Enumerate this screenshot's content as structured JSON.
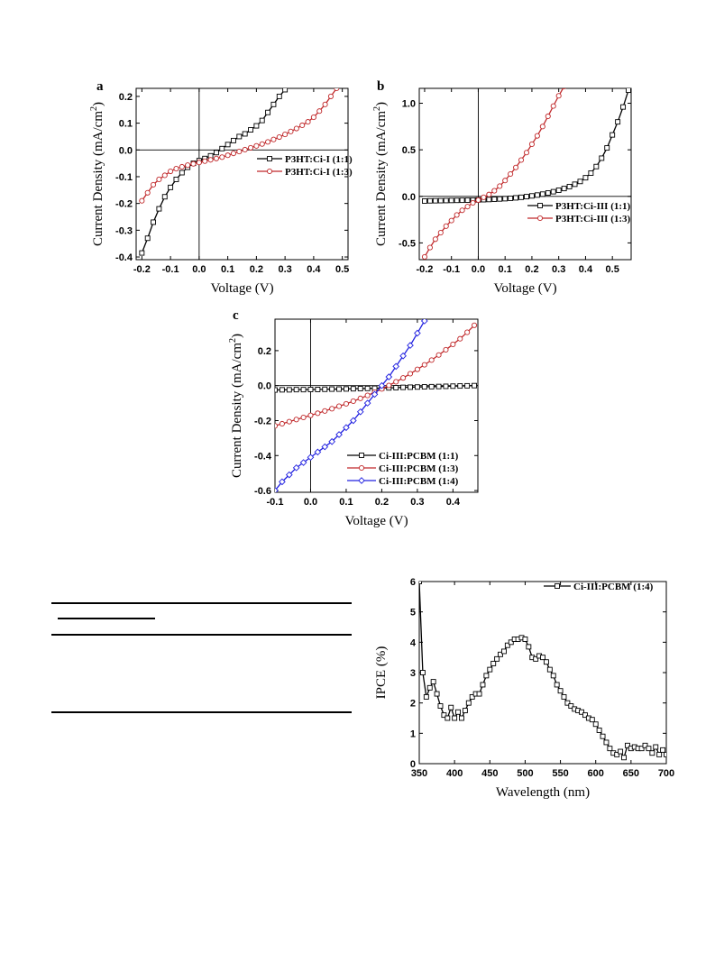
{
  "chart_data": [
    {
      "id": "a",
      "panel_label": "a",
      "type": "line",
      "xlabel": "Voltage (V)",
      "ylabel": "Current Density (mA/cm",
      "ylabel_sup": "2",
      "ylabel_end": ")",
      "xlim": [
        -0.22,
        0.52
      ],
      "ylim": [
        -0.41,
        0.23
      ],
      "xticks": [
        -0.2,
        -0.1,
        0.0,
        0.1,
        0.2,
        0.3,
        0.4,
        0.5
      ],
      "xtick_labels": [
        "-0.2",
        "-0.1",
        "0.0",
        "0.1",
        "0.2",
        "0.3",
        "0.4",
        "0.5"
      ],
      "yticks": [
        -0.4,
        -0.3,
        -0.2,
        -0.1,
        0.0,
        0.1,
        0.2
      ],
      "ytick_labels": [
        "-0.4",
        "-0.3",
        "-0.2",
        "-0.1",
        "0.0",
        "0.1",
        "0.2"
      ],
      "zero_lines": true,
      "legend": "center-right",
      "series": [
        {
          "name": "P3HT:Ci-I (1:1)",
          "color": "#000000",
          "marker": "square",
          "x": [
            -0.2,
            -0.18,
            -0.16,
            -0.14,
            -0.12,
            -0.1,
            -0.08,
            -0.06,
            -0.04,
            -0.02,
            0.0,
            0.02,
            0.04,
            0.06,
            0.08,
            0.1,
            0.12,
            0.14,
            0.16,
            0.18,
            0.2,
            0.22,
            0.24,
            0.26,
            0.28,
            0.3
          ],
          "y": [
            -0.385,
            -0.33,
            -0.27,
            -0.22,
            -0.175,
            -0.14,
            -0.11,
            -0.085,
            -0.065,
            -0.05,
            -0.04,
            -0.032,
            -0.022,
            -0.01,
            0.005,
            0.02,
            0.035,
            0.05,
            0.06,
            0.075,
            0.09,
            0.11,
            0.14,
            0.17,
            0.2,
            0.225
          ]
        },
        {
          "name": "P3HT:Ci-I (1:3)",
          "color": "#c0282a",
          "marker": "circle",
          "x": [
            -0.2,
            -0.18,
            -0.16,
            -0.14,
            -0.12,
            -0.1,
            -0.08,
            -0.06,
            -0.04,
            -0.02,
            0.0,
            0.02,
            0.04,
            0.06,
            0.08,
            0.1,
            0.12,
            0.14,
            0.16,
            0.18,
            0.2,
            0.22,
            0.24,
            0.26,
            0.28,
            0.3,
            0.32,
            0.34,
            0.36,
            0.38,
            0.4,
            0.42,
            0.44,
            0.46,
            0.48
          ],
          "y": [
            -0.19,
            -0.16,
            -0.13,
            -0.11,
            -0.095,
            -0.08,
            -0.07,
            -0.063,
            -0.057,
            -0.052,
            -0.047,
            -0.042,
            -0.037,
            -0.032,
            -0.027,
            -0.02,
            -0.013,
            -0.006,
            0.001,
            0.008,
            0.015,
            0.022,
            0.03,
            0.039,
            0.048,
            0.058,
            0.069,
            0.08,
            0.092,
            0.105,
            0.122,
            0.145,
            0.17,
            0.2,
            0.23
          ]
        }
      ]
    },
    {
      "id": "b",
      "panel_label": "b",
      "type": "line",
      "xlabel": "Voltage (V)",
      "ylabel": "Current Density (mA/cm",
      "ylabel_sup": "2",
      "ylabel_end": ")",
      "xlim": [
        -0.22,
        0.57
      ],
      "ylim": [
        -0.68,
        1.16
      ],
      "xticks": [
        -0.2,
        -0.1,
        0.0,
        0.1,
        0.2,
        0.3,
        0.4,
        0.5
      ],
      "xtick_labels": [
        "-0.2",
        "-0.1",
        "0.0",
        "0.1",
        "0.2",
        "0.3",
        "0.4",
        "0.5"
      ],
      "yticks": [
        -0.5,
        0.0,
        0.5,
        1.0
      ],
      "ytick_labels": [
        "-0.5",
        "0.0",
        "0.5",
        "1.0"
      ],
      "zero_lines": true,
      "legend": "lower-right",
      "series": [
        {
          "name": "P3HT:Ci-III (1:1)",
          "color": "#000000",
          "marker": "square",
          "x": [
            -0.2,
            -0.18,
            -0.16,
            -0.14,
            -0.12,
            -0.1,
            -0.08,
            -0.06,
            -0.04,
            -0.02,
            0.0,
            0.02,
            0.04,
            0.06,
            0.08,
            0.1,
            0.12,
            0.14,
            0.16,
            0.18,
            0.2,
            0.22,
            0.24,
            0.26,
            0.28,
            0.3,
            0.32,
            0.34,
            0.36,
            0.38,
            0.4,
            0.42,
            0.44,
            0.46,
            0.48,
            0.5,
            0.52,
            0.54,
            0.56
          ],
          "y": [
            -0.05,
            -0.048,
            -0.047,
            -0.046,
            -0.045,
            -0.044,
            -0.043,
            -0.042,
            -0.041,
            -0.04,
            -0.038,
            -0.036,
            -0.034,
            -0.031,
            -0.028,
            -0.025,
            -0.021,
            -0.016,
            -0.01,
            -0.003,
            0.005,
            0.014,
            0.024,
            0.036,
            0.05,
            0.066,
            0.084,
            0.105,
            0.13,
            0.16,
            0.2,
            0.25,
            0.32,
            0.41,
            0.52,
            0.66,
            0.8,
            0.96,
            1.14
          ]
        },
        {
          "name": "P3HT:Ci-III (1:3)",
          "color": "#c0282a",
          "marker": "circle",
          "x": [
            -0.2,
            -0.18,
            -0.16,
            -0.14,
            -0.12,
            -0.1,
            -0.08,
            -0.06,
            -0.04,
            -0.02,
            0.0,
            0.02,
            0.04,
            0.06,
            0.08,
            0.1,
            0.12,
            0.14,
            0.16,
            0.18,
            0.2,
            0.22,
            0.24,
            0.26,
            0.28,
            0.3,
            0.32
          ],
          "y": [
            -0.65,
            -0.55,
            -0.46,
            -0.39,
            -0.32,
            -0.26,
            -0.2,
            -0.15,
            -0.11,
            -0.07,
            -0.04,
            -0.01,
            0.02,
            0.06,
            0.11,
            0.17,
            0.24,
            0.31,
            0.39,
            0.47,
            0.56,
            0.65,
            0.75,
            0.86,
            0.97,
            1.08,
            1.18
          ]
        }
      ]
    },
    {
      "id": "c",
      "panel_label": "c",
      "type": "line",
      "xlabel": "Voltage (V)",
      "ylabel": "Current Density (mA/cm",
      "ylabel_sup": "2",
      "ylabel_end": ")",
      "xlim": [
        -0.1,
        0.47
      ],
      "ylim": [
        -0.61,
        0.38
      ],
      "xticks": [
        -0.1,
        0.0,
        0.1,
        0.2,
        0.3,
        0.4
      ],
      "xtick_labels": [
        "-0.1",
        "0.0",
        "0.1",
        "0.2",
        "0.3",
        "0.4"
      ],
      "yticks": [
        -0.6,
        -0.4,
        -0.2,
        0.0,
        0.2
      ],
      "ytick_labels": [
        "-0.6",
        "-0.4",
        "-0.2",
        "0.0",
        "0.2"
      ],
      "zero_lines": true,
      "legend": "lower-right",
      "series": [
        {
          "name": "Ci-III:PCBM (1:1)",
          "color": "#000000",
          "marker": "square",
          "x": [
            -0.1,
            -0.08,
            -0.06,
            -0.04,
            -0.02,
            0.0,
            0.02,
            0.04,
            0.06,
            0.08,
            0.1,
            0.12,
            0.14,
            0.16,
            0.18,
            0.2,
            0.22,
            0.24,
            0.26,
            0.28,
            0.3,
            0.32,
            0.34,
            0.36,
            0.38,
            0.4,
            0.42,
            0.44,
            0.46
          ],
          "y": [
            -0.025,
            -0.024,
            -0.024,
            -0.023,
            -0.023,
            -0.022,
            -0.022,
            -0.021,
            -0.02,
            -0.02,
            -0.019,
            -0.018,
            -0.017,
            -0.016,
            -0.015,
            -0.014,
            -0.013,
            -0.012,
            -0.01,
            -0.009,
            -0.008,
            -0.007,
            -0.006,
            -0.005,
            -0.004,
            -0.003,
            -0.002,
            -0.001,
            0.0
          ]
        },
        {
          "name": "Ci-III:PCBM (1:3)",
          "color": "#c0282a",
          "marker": "circle",
          "x": [
            -0.1,
            -0.08,
            -0.06,
            -0.04,
            -0.02,
            0.0,
            0.02,
            0.04,
            0.06,
            0.08,
            0.1,
            0.12,
            0.14,
            0.16,
            0.18,
            0.2,
            0.22,
            0.24,
            0.26,
            0.28,
            0.3,
            0.32,
            0.34,
            0.36,
            0.38,
            0.4,
            0.42,
            0.44,
            0.46
          ],
          "y": [
            -0.23,
            -0.218,
            -0.206,
            -0.194,
            -0.182,
            -0.17,
            -0.158,
            -0.145,
            -0.132,
            -0.118,
            -0.104,
            -0.089,
            -0.073,
            -0.056,
            -0.038,
            -0.019,
            0.001,
            0.022,
            0.044,
            0.068,
            0.093,
            0.119,
            0.146,
            0.175,
            0.205,
            0.236,
            0.268,
            0.305,
            0.345
          ]
        },
        {
          "name": "Ci-III:PCBM (1:4)",
          "color": "#2020e0",
          "marker": "diamond",
          "x": [
            -0.1,
            -0.08,
            -0.06,
            -0.04,
            -0.02,
            0.0,
            0.02,
            0.04,
            0.06,
            0.08,
            0.1,
            0.12,
            0.14,
            0.16,
            0.18,
            0.2,
            0.22,
            0.24,
            0.26,
            0.28,
            0.3,
            0.32
          ],
          "y": [
            -0.6,
            -0.55,
            -0.51,
            -0.47,
            -0.44,
            -0.41,
            -0.38,
            -0.35,
            -0.32,
            -0.28,
            -0.24,
            -0.2,
            -0.15,
            -0.1,
            -0.05,
            0.0,
            0.05,
            0.11,
            0.17,
            0.23,
            0.3,
            0.37
          ]
        }
      ]
    },
    {
      "id": "d",
      "panel_label": "",
      "type": "line",
      "xlabel": "Wavelength (nm)",
      "ylabel": "IPCE (%)",
      "ylabel_sup": "",
      "ylabel_end": "",
      "xlim": [
        350,
        700
      ],
      "ylim": [
        0,
        6
      ],
      "xticks": [
        350,
        400,
        450,
        500,
        550,
        600,
        650,
        700
      ],
      "xtick_labels": [
        "350",
        "400",
        "450",
        "500",
        "550",
        "600",
        "650",
        "700"
      ],
      "yticks": [
        0,
        1,
        2,
        3,
        4,
        5,
        6
      ],
      "ytick_labels": [
        "0",
        "1",
        "2",
        "3",
        "4",
        "5",
        "6"
      ],
      "zero_lines": false,
      "legend": "top-right",
      "series": [
        {
          "name": "Ci-III:PCBM (1:4)",
          "color": "#000000",
          "marker": "square",
          "x": [
            350,
            355,
            360,
            365,
            370,
            375,
            380,
            385,
            390,
            395,
            400,
            405,
            410,
            415,
            420,
            425,
            430,
            435,
            440,
            445,
            450,
            455,
            460,
            465,
            470,
            475,
            480,
            485,
            490,
            495,
            500,
            505,
            510,
            515,
            520,
            525,
            530,
            535,
            540,
            545,
            550,
            555,
            560,
            565,
            570,
            575,
            580,
            585,
            590,
            595,
            600,
            605,
            610,
            615,
            620,
            625,
            630,
            635,
            640,
            645,
            650,
            655,
            660,
            665,
            670,
            675,
            680,
            685,
            690,
            695,
            700
          ],
          "y": [
            6.0,
            3.0,
            2.2,
            2.5,
            2.7,
            2.3,
            1.9,
            1.6,
            1.5,
            1.85,
            1.5,
            1.7,
            1.5,
            1.75,
            2.0,
            2.2,
            2.3,
            2.3,
            2.6,
            2.9,
            3.1,
            3.3,
            3.45,
            3.6,
            3.7,
            3.9,
            4.0,
            4.1,
            4.1,
            4.15,
            4.1,
            3.85,
            3.5,
            3.45,
            3.55,
            3.5,
            3.35,
            3.1,
            2.9,
            2.6,
            2.4,
            2.2,
            2.0,
            1.9,
            1.8,
            1.75,
            1.7,
            1.6,
            1.5,
            1.45,
            1.3,
            1.1,
            0.9,
            0.7,
            0.5,
            0.35,
            0.3,
            0.4,
            0.2,
            0.6,
            0.5,
            0.55,
            0.5,
            0.5,
            0.6,
            0.5,
            0.35,
            0.55,
            0.3,
            0.45,
            0.3
          ]
        }
      ]
    }
  ]
}
